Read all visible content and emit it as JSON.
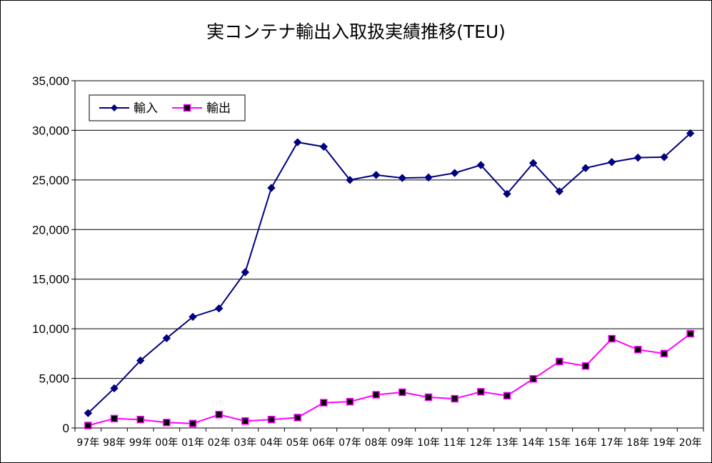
{
  "chart_data": {
    "type": "line",
    "title": "実コンテナ輸出入取扱実績推移(TEU)",
    "xlabel": "",
    "ylabel": "",
    "ylim": [
      0,
      35000
    ],
    "yticks": [
      0,
      5000,
      10000,
      15000,
      20000,
      25000,
      30000,
      35000
    ],
    "ytick_labels": [
      "0",
      "5,000",
      "10,000",
      "15,000",
      "20,000",
      "25,000",
      "30,000",
      "35,000"
    ],
    "grid": "horizontal",
    "legend_position": "top-left",
    "categories": [
      "97年",
      "98年",
      "99年",
      "00年",
      "01年",
      "02年",
      "03年",
      "04年",
      "05年",
      "06年",
      "07年",
      "08年",
      "09年",
      "10年",
      "11年",
      "12年",
      "13年",
      "14年",
      "15年",
      "16年",
      "17年",
      "18年",
      "19年",
      "20年"
    ],
    "series": [
      {
        "name": "輸入",
        "color": "#000080",
        "marker": "diamond",
        "values": [
          1500,
          4000,
          6800,
          9050,
          11200,
          12050,
          15700,
          24200,
          28800,
          28350,
          25000,
          25500,
          25200,
          25250,
          25700,
          26500,
          23600,
          26700,
          23850,
          26200,
          26800,
          27250,
          27300,
          29700
        ]
      },
      {
        "name": "輸出",
        "color": "#ff00ff",
        "marker": "square",
        "values": [
          250,
          950,
          850,
          550,
          450,
          1350,
          700,
          850,
          1050,
          2550,
          2650,
          3350,
          3600,
          3100,
          2950,
          3650,
          3250,
          4950,
          6700,
          6250,
          9000,
          7900,
          7500,
          9500
        ]
      }
    ]
  }
}
